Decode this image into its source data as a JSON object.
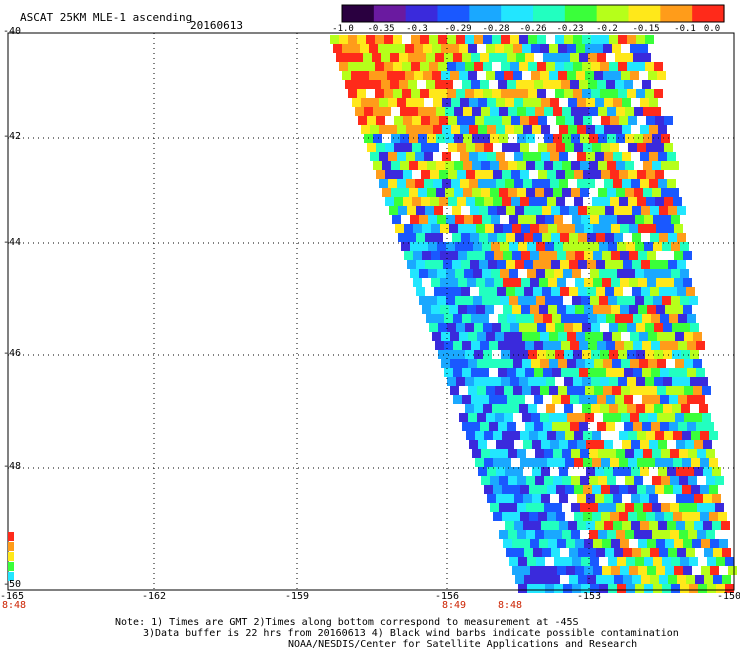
{
  "header": {
    "title": "ASCAT 25KM MLE-1 ascending",
    "date": "20160613"
  },
  "colorbar": {
    "labels": [
      "-1.0",
      "-0.35",
      "-0.3",
      "-0.29",
      "-0.28",
      "-0.26",
      "-0.23",
      "-0.2",
      "-0.15",
      "-0.1",
      "0.0"
    ],
    "colors": [
      "#2a0040",
      "#6a1aa0",
      "#3a2adc",
      "#1a58ff",
      "#1aa8ff",
      "#22e6ff",
      "#22ffc0",
      "#3aff3a",
      "#b6ff1a",
      "#ffe81a",
      "#ff9c1a",
      "#ff2a1a"
    ]
  },
  "axes": {
    "y_ticks": [
      "-40",
      "-42",
      "-44",
      "-46",
      "-48",
      "-50"
    ],
    "x_ticks": [
      "-165",
      "-162",
      "-159",
      "-156",
      "-153",
      "-150"
    ]
  },
  "time_labels": [
    "8:48",
    "8:49",
    "8:48"
  ],
  "legend_colors": [
    "#ff2a1a",
    "#ff9c1a",
    "#ffe81a",
    "#3aff3a",
    "#22e6ff"
  ],
  "notes": {
    "line1": "Note: 1) Times are GMT 2)Times along bottom correspond to measurement at -45S",
    "line2": "3)Data buffer is 22 hrs from 20160613 4) Black wind barbs indicate possible contamination",
    "line3": "NOAA/NESDIS/Center for Satellite Applications and Research"
  }
}
